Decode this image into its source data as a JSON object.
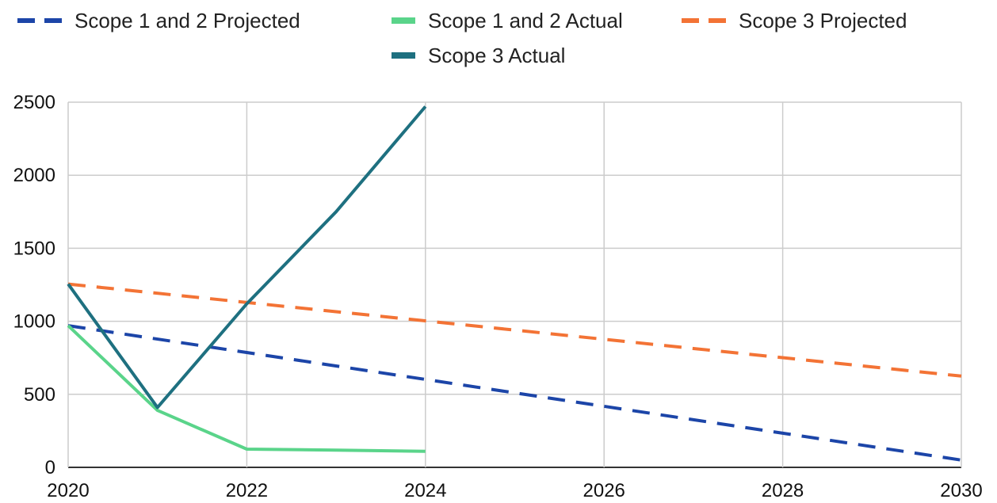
{
  "chart_data": {
    "type": "line",
    "title": "",
    "xlabel": "",
    "ylabel": "",
    "xlim": [
      2020,
      2030
    ],
    "ylim": [
      0,
      2500
    ],
    "x_ticks": [
      "2020",
      "2022",
      "2024",
      "2026",
      "2028",
      "2030"
    ],
    "y_ticks": [
      "0",
      "500",
      "1000",
      "1500",
      "2000",
      "2500"
    ],
    "grid": true,
    "legend_position": "top",
    "series": [
      {
        "name": "Scope 1 and 2 Projected",
        "color": "#1c45a8",
        "style": "dashed",
        "points": [
          [
            2020,
            970
          ],
          [
            2030,
            50
          ]
        ]
      },
      {
        "name": "Scope 1 and 2 Actual",
        "color": "#5ad48a",
        "style": "solid",
        "points": [
          [
            2020,
            970
          ],
          [
            2021,
            390
          ],
          [
            2022,
            125
          ],
          [
            2023,
            118
          ],
          [
            2024,
            110
          ]
        ]
      },
      {
        "name": "Scope 3 Projected",
        "color": "#f37335",
        "style": "dashed",
        "points": [
          [
            2020,
            1255
          ],
          [
            2030,
            625
          ]
        ]
      },
      {
        "name": "Scope 3 Actual",
        "color": "#1e7080",
        "style": "solid",
        "points": [
          [
            2020,
            1255
          ],
          [
            2021,
            410
          ],
          [
            2022,
            1120
          ],
          [
            2023,
            1750
          ],
          [
            2024,
            2470
          ]
        ]
      }
    ]
  }
}
